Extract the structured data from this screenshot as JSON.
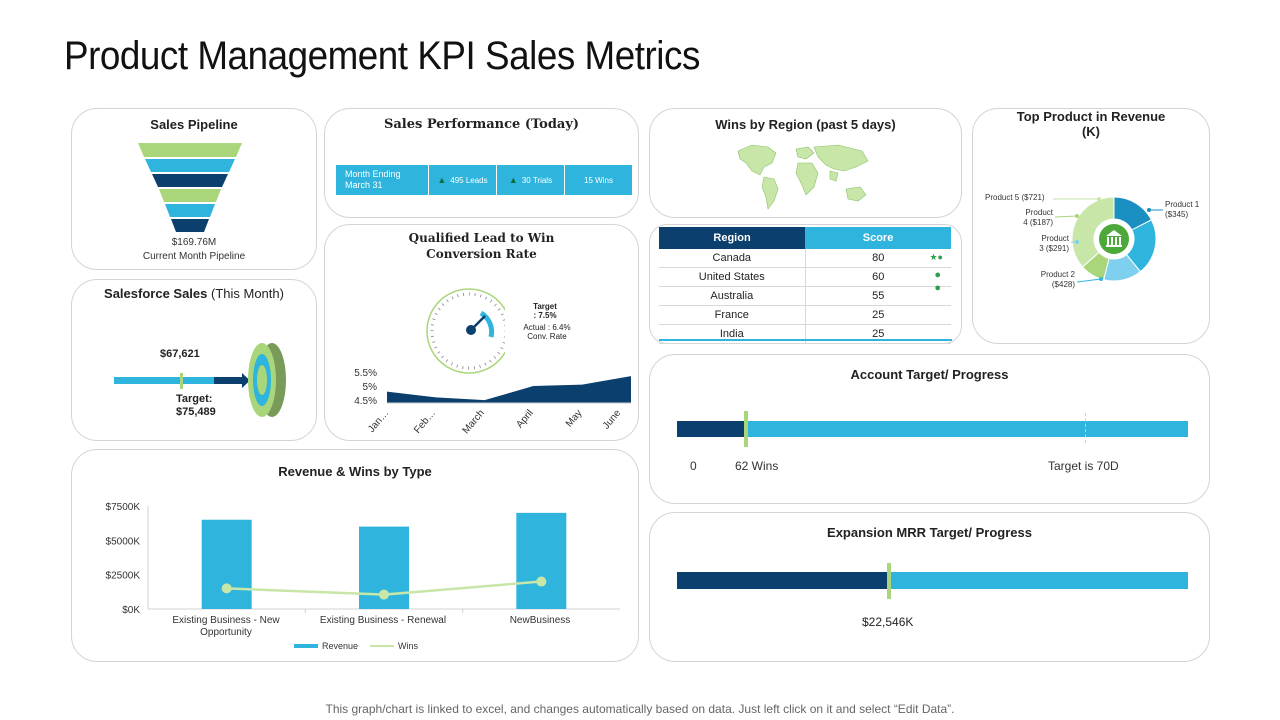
{
  "page": {
    "title": "Product Management KPI Sales Metrics",
    "footer": "This graph/chart is linked to excel, and changes automatically based on data. Just left click on it and select “Edit Data”."
  },
  "sales_pipeline": {
    "title": "Sales Pipeline",
    "value": "$169.76M",
    "caption": "Current Month Pipeline"
  },
  "salesforce": {
    "title_bold": "Salesforce Sales",
    "title_rest": " (This Month)",
    "value": "$67,621",
    "target_label": "Target:",
    "target_value": "$75,489"
  },
  "sales_perf": {
    "title": "Sales Performance (Today)",
    "period_line1": "Month Ending",
    "period_line2": "March 31",
    "leads": "495 Leads",
    "trials": "30 Trials",
    "wins": "15 Wins"
  },
  "conversion": {
    "title_line1": "Qualified Lead to Win",
    "title_line2": "Conversion Rate",
    "target_line1": "Target",
    "target_line2": ": 7.5%",
    "actual_line1": "Actual : 6.4%",
    "actual_line2": "Conv. Rate",
    "chart_data": {
      "type": "area",
      "categories": [
        "Jan…",
        "Feb…",
        "March",
        "April",
        "May",
        "June"
      ],
      "values": [
        4.8,
        4.6,
        4.5,
        5.0,
        5.05,
        5.35
      ],
      "yticks": [
        "5.5%",
        "5%",
        "4.5%"
      ],
      "ylim": [
        4.4,
        5.6
      ]
    }
  },
  "wins_region": {
    "title": "Wins by Region (past 5 days)",
    "headers": [
      "Region",
      "Score"
    ],
    "rows": [
      {
        "region": "Canada",
        "score": "80"
      },
      {
        "region": "United States",
        "score": "60"
      },
      {
        "region": "Australia",
        "score": "55"
      },
      {
        "region": "France",
        "score": "25"
      },
      {
        "region": "India",
        "score": "25"
      }
    ]
  },
  "top_product": {
    "title_line1": "Top Product in Revenue",
    "title_line2": "(K)",
    "chart_data": {
      "type": "pie",
      "labels": [
        "Product 1 ($345)",
        "Product 2 ($428)",
        "Product 3 ($291)",
        "Product 4 ($187)",
        "Product 5 ($721)"
      ],
      "values": [
        345,
        428,
        291,
        187,
        721
      ]
    },
    "label_p1a": "Product 1",
    "label_p1b": "($345)",
    "label_p2a": "Product 2",
    "label_p2b": "($428)",
    "label_p3a": "Product",
    "label_p3b": "3 ($291)",
    "label_p4a": "Product",
    "label_p4b": "4 ($187)",
    "label_p5": "Product 5 ($721)"
  },
  "revenue_wins": {
    "title": "Revenue & Wins by Type",
    "legend_revenue": "Revenue",
    "legend_wins": "Wins",
    "chart_data": {
      "type": "bar",
      "categories": [
        "Existing Business - New Opportunity",
        "Existing Business - Renewal",
        "NewBusiness"
      ],
      "series": [
        {
          "name": "Revenue",
          "values": [
            6500,
            6000,
            7000
          ]
        },
        {
          "name": "Wins",
          "values": [
            1500,
            1050,
            2000
          ]
        }
      ],
      "yticks": [
        "$7500K",
        "$5000K",
        "$2500K",
        "$0K"
      ],
      "ylim": [
        0,
        7500
      ]
    },
    "cat1_line1": "Existing Business - New",
    "cat1_line2": "Opportunity",
    "cat2": "Existing Business - Renewal",
    "cat3": "NewBusiness"
  },
  "account": {
    "title": "Account Target/ Progress",
    "zero": "0",
    "wins": "62 Wins",
    "target": "Target is 70D",
    "progress": 0.135
  },
  "expansion": {
    "title": "Expansion MRR Target/ Progress",
    "value": "$22,546K",
    "progress": 0.415
  },
  "colors": {
    "dark_blue": "#0b3f6e",
    "light_blue": "#2fb5dd",
    "green": "#a9d67a",
    "pale_green": "#c7e6a8"
  }
}
